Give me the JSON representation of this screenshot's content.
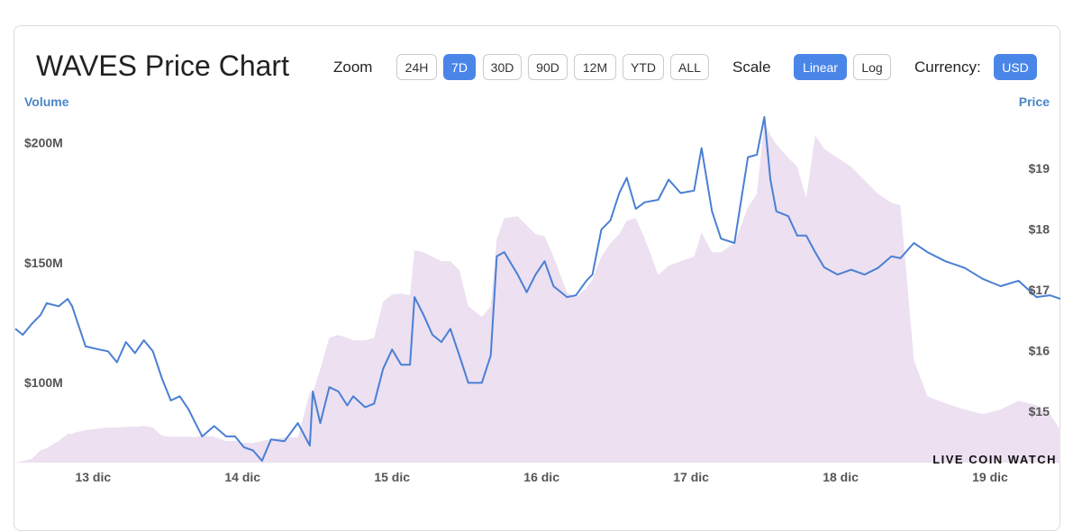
{
  "header": {
    "title": "WAVES Price Chart",
    "zoom": {
      "label": "Zoom",
      "options": [
        "24H",
        "7D",
        "30D",
        "90D",
        "12M",
        "YTD",
        "ALL"
      ],
      "selected": "7D"
    },
    "scale": {
      "label": "Scale",
      "options": [
        "Linear",
        "Log"
      ],
      "selected": "Linear"
    },
    "currency": {
      "label": "Currency:",
      "options": [
        "USD"
      ],
      "selected": "USD"
    }
  },
  "watermark": "LIVE COIN WATCH",
  "chart_data": {
    "type": "line",
    "x": [
      12.48,
      12.53,
      12.59,
      12.65,
      12.69,
      12.77,
      12.83,
      12.86,
      12.89,
      12.95,
      13.04,
      13.1,
      13.16,
      13.22,
      13.28,
      13.34,
      13.4,
      13.46,
      13.52,
      13.58,
      13.64,
      13.67,
      13.73,
      13.81,
      13.89,
      13.95,
      14.01,
      14.07,
      14.13,
      14.19,
      14.28,
      14.37,
      14.45,
      14.47,
      14.52,
      14.58,
      14.64,
      14.7,
      14.74,
      14.82,
      14.88,
      14.94,
      15.0,
      15.06,
      15.12,
      15.15,
      15.21,
      15.27,
      15.33,
      15.39,
      15.45,
      15.51,
      15.6,
      15.66,
      15.7,
      15.75,
      15.84,
      15.9,
      15.96,
      16.02,
      16.08,
      16.17,
      16.23,
      16.3,
      16.34,
      16.4,
      16.46,
      16.52,
      16.57,
      16.63,
      16.69,
      16.78,
      16.85,
      16.93,
      17.02,
      17.07,
      17.14,
      17.2,
      17.29,
      17.38,
      17.44,
      17.49,
      17.53,
      17.57,
      17.65,
      17.71,
      17.77,
      17.83,
      17.89,
      17.98,
      18.07,
      18.16,
      18.25,
      18.34,
      18.4,
      18.49,
      18.58,
      18.7,
      18.83,
      18.95,
      19.07,
      19.19,
      19.31,
      19.4,
      19.47
    ],
    "xlim": [
      12.48,
      19.47
    ],
    "xticks": [
      {
        "value": 13,
        "label": "13 dic"
      },
      {
        "value": 14,
        "label": "14 dic"
      },
      {
        "value": 15,
        "label": "15 dic"
      },
      {
        "value": 16,
        "label": "16 dic"
      },
      {
        "value": 17,
        "label": "17 dic"
      },
      {
        "value": 18,
        "label": "18 dic"
      },
      {
        "value": 19,
        "label": "19 dic"
      }
    ],
    "ylim": [
      66.7,
      220
    ],
    "yticks": [
      {
        "value": 100,
        "label": "$100M"
      },
      {
        "value": 150,
        "label": "$150M"
      },
      {
        "value": 200,
        "label": "$200M"
      }
    ],
    "y2lim": [
      14.16,
      20.21
    ],
    "y2ticks": [
      {
        "value": 15,
        "label": "$15"
      },
      {
        "value": 16,
        "label": "$16"
      },
      {
        "value": 17,
        "label": "$17"
      },
      {
        "value": 18,
        "label": "$18"
      },
      {
        "value": 19,
        "label": "$19"
      }
    ],
    "series": [
      {
        "name": "Volume",
        "type": "area",
        "color": "#ece0f1",
        "values": [
          66.7,
          67.4,
          68.2,
          71.9,
          72.7,
          75.7,
          78.7,
          78.7,
          79.4,
          80.2,
          80.9,
          81.3,
          81.3,
          81.6,
          81.6,
          82.0,
          81.3,
          77.9,
          77.5,
          77.5,
          77.5,
          77.2,
          77.9,
          77.5,
          75.7,
          75.7,
          74.9,
          74.9,
          75.7,
          76.4,
          77.2,
          77.2,
          95.9,
          95.9,
          105.6,
          118.7,
          119.8,
          118.7,
          117.6,
          117.6,
          118.7,
          133.7,
          136.7,
          137.1,
          136.3,
          155.1,
          154.3,
          152.4,
          150.6,
          150.6,
          146.8,
          131.8,
          127.3,
          131.8,
          159.9,
          168.5,
          169.3,
          165.5,
          161.8,
          161.0,
          152.4,
          137.5,
          135.6,
          139.3,
          143.1,
          152.4,
          158.0,
          161.8,
          167.4,
          168.5,
          159.9,
          144.9,
          148.7,
          150.6,
          152.4,
          162.5,
          154.3,
          154.3,
          158.0,
          173.0,
          178.6,
          208.6,
          203.0,
          199.2,
          193.6,
          189.9,
          176.8,
          203.0,
          197.4,
          193.6,
          189.9,
          184.3,
          178.6,
          174.9,
          173.8,
          109.4,
          94.4,
          91.4,
          88.8,
          86.9,
          88.8,
          92.5,
          90.6,
          86.9,
          80.2
        ]
      },
      {
        "name": "Price",
        "axis": "y2",
        "color": "#4a7fd4",
        "values": [
          16.36,
          16.26,
          16.44,
          16.59,
          16.78,
          16.73,
          16.85,
          16.73,
          16.51,
          16.07,
          16.02,
          15.99,
          15.81,
          16.14,
          15.96,
          16.17,
          15.99,
          15.55,
          15.18,
          15.25,
          15.03,
          14.88,
          14.59,
          14.76,
          14.59,
          14.59,
          14.41,
          14.36,
          14.19,
          14.54,
          14.51,
          14.81,
          14.44,
          15.33,
          14.81,
          15.4,
          15.33,
          15.1,
          15.25,
          15.07,
          15.13,
          15.7,
          16.02,
          15.77,
          15.77,
          16.88,
          16.59,
          16.26,
          16.14,
          16.36,
          15.92,
          15.47,
          15.47,
          15.92,
          17.55,
          17.62,
          17.25,
          16.96,
          17.25,
          17.47,
          17.06,
          16.88,
          16.91,
          17.15,
          17.25,
          17.99,
          18.14,
          18.59,
          18.84,
          18.33,
          18.44,
          18.48,
          18.81,
          18.59,
          18.63,
          19.33,
          18.29,
          17.84,
          17.77,
          19.18,
          19.22,
          19.84,
          18.81,
          18.29,
          18.21,
          17.89,
          17.89,
          17.62,
          17.37,
          17.25,
          17.33,
          17.25,
          17.36,
          17.55,
          17.52,
          17.77,
          17.62,
          17.47,
          17.36,
          17.18,
          17.06,
          17.15,
          16.88,
          16.91,
          16.85
        ]
      }
    ]
  }
}
